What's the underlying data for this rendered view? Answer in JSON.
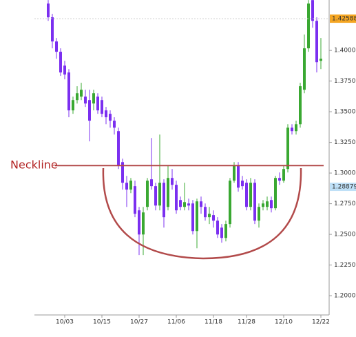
{
  "chart_data": {
    "type": "candlestick",
    "categories": [
      null,
      null,
      null,
      null,
      "10/03",
      null,
      null,
      null,
      null,
      null,
      null,
      null,
      null,
      "10/15",
      null,
      null,
      null,
      null,
      null,
      null,
      null,
      null,
      "10/27",
      null,
      null,
      null,
      null,
      null,
      null,
      null,
      null,
      "11/06",
      null,
      null,
      null,
      null,
      null,
      null,
      null,
      null,
      "11/18",
      null,
      null,
      null,
      null,
      null,
      null,
      null,
      "11/28",
      null,
      null,
      null,
      null,
      null,
      null,
      null,
      null,
      "12/10",
      null,
      null,
      null,
      null,
      null,
      null,
      null,
      null,
      "12/22"
    ],
    "open": [
      1.4382,
      1.427,
      1.4073,
      1.3989,
      1.3876,
      1.382,
      1.3511,
      1.3595,
      1.3623,
      1.3623,
      1.3595,
      1.3567,
      1.3623,
      1.3595,
      1.3511,
      1.3483,
      1.3427,
      1.3342,
      1.3089,
      1.2921,
      1.2865,
      1.2893,
      1.2696,
      1.2499,
      1.2724,
      1.2949,
      1.2893,
      1.2735,
      1.2921,
      1.2724,
      1.296,
      1.2904,
      1.278,
      1.2724,
      1.2752,
      1.2752,
      1.2527,
      1.2769,
      1.2724,
      1.264,
      1.2657,
      1.2612,
      1.2555,
      1.2471,
      1.2584,
      1.2938,
      1.3061,
      1.2938,
      1.2921,
      1.2724,
      1.2921,
      1.2612,
      1.2724,
      1.2724,
      1.278,
      1.2713,
      1.296,
      1.2938,
      1.3033,
      1.337,
      1.3342,
      1.3398,
      1.3679,
      1.4017,
      1.441,
      1.4241,
      1.3915
    ],
    "high": [
      1.441,
      1.4298,
      1.4101,
      1.4017,
      1.3915,
      1.3848,
      1.3623,
      1.3708,
      1.3736,
      1.3679,
      1.3679,
      1.3679,
      1.3651,
      1.3623,
      1.3539,
      1.3511,
      1.3455,
      1.337,
      1.3117,
      1.2977,
      1.296,
      1.2938,
      1.2724,
      1.2724,
      1.296,
      1.3286,
      1.2921,
      1.3314,
      1.2949,
      1.3061,
      1.3033,
      1.2938,
      1.2808,
      1.2921,
      1.2791,
      1.278,
      1.2791,
      1.2808,
      1.2752,
      1.2724,
      1.2696,
      1.264,
      1.2584,
      1.2612,
      1.296,
      1.3089,
      1.3089,
      1.2977,
      1.2949,
      1.296,
      1.2949,
      1.2752,
      1.278,
      1.2808,
      1.2808,
      1.2977,
      1.3005,
      1.3061,
      1.3398,
      1.3398,
      1.3427,
      1.3736,
      1.4129,
      1.441,
      1.441,
      1.427,
      1.4101
    ],
    "low": [
      1.4241,
      1.4017,
      1.3932,
      1.3792,
      1.3764,
      1.3455,
      1.3483,
      1.3567,
      1.3595,
      1.3539,
      1.3258,
      1.3511,
      1.3483,
      1.3455,
      1.3398,
      1.337,
      1.3314,
      1.3033,
      1.2865,
      1.2724,
      1.2836,
      1.264,
      1.2331,
      1.2331,
      1.2696,
      1.2865,
      1.2696,
      1.2696,
      1.2555,
      1.2696,
      1.2865,
      1.2668,
      1.2696,
      1.2696,
      1.2696,
      1.2499,
      1.2387,
      1.2668,
      1.2612,
      1.2584,
      1.2555,
      1.2471,
      1.2432,
      1.2443,
      1.2555,
      1.2921,
      1.2848,
      1.2865,
      1.2696,
      1.2696,
      1.2584,
      1.2555,
      1.2696,
      1.2696,
      1.2679,
      1.2696,
      1.2904,
      1.2921,
      1.3005,
      1.3314,
      1.3314,
      1.337,
      1.3651,
      1.3989,
      1.4185,
      1.382,
      1.3848
    ],
    "close": [
      1.427,
      1.4073,
      1.3989,
      1.382,
      1.3803,
      1.3511,
      1.3595,
      1.3651,
      1.3679,
      1.3567,
      1.3427,
      1.3651,
      1.3511,
      1.3483,
      1.3455,
      1.3427,
      1.337,
      1.3061,
      1.2921,
      1.2865,
      1.2938,
      1.2668,
      1.2499,
      1.2679,
      1.2938,
      1.2893,
      1.2735,
      1.2921,
      1.264,
      1.296,
      1.2904,
      1.2696,
      1.2724,
      1.2763,
      1.2735,
      1.2527,
      1.2769,
      1.2724,
      1.264,
      1.2668,
      1.2612,
      1.2499,
      1.2471,
      1.2584,
      1.2938,
      1.3061,
      1.2881,
      1.2893,
      1.2724,
      1.2921,
      1.2612,
      1.2724,
      1.2752,
      1.2769,
      1.2713,
      1.296,
      1.2938,
      1.3033,
      1.337,
      1.3342,
      1.3398,
      1.3708,
      1.4017,
      1.4382,
      1.4241,
      1.3904,
      1.3932
    ],
    "up_color": "#3aa832",
    "down_color": "#7b2ff0",
    "ylim": [
      1.1843,
      1.4411
    ],
    "yticks": [
      {
        "value": 1.2,
        "label": "1.2000"
      },
      {
        "value": 1.225,
        "label": "1.2250"
      },
      {
        "value": 1.25,
        "label": "1.2500"
      },
      {
        "value": 1.275,
        "label": "1.2750"
      },
      {
        "value": 1.3,
        "label": "1.3000"
      },
      {
        "value": 1.325,
        "label": "1.3250"
      },
      {
        "value": 1.35,
        "label": "1.3500"
      },
      {
        "value": 1.375,
        "label": "1.3750"
      },
      {
        "value": 1.4,
        "label": "1.4000"
      }
    ],
    "price_markers": [
      {
        "value": 1.42588,
        "color": "#f5a623"
      },
      {
        "value": 1.28879,
        "color": "#bfe0f7"
      }
    ],
    "annotation": {
      "text": "Neckline",
      "value": 1.3061,
      "color": "#b24a4a"
    }
  }
}
